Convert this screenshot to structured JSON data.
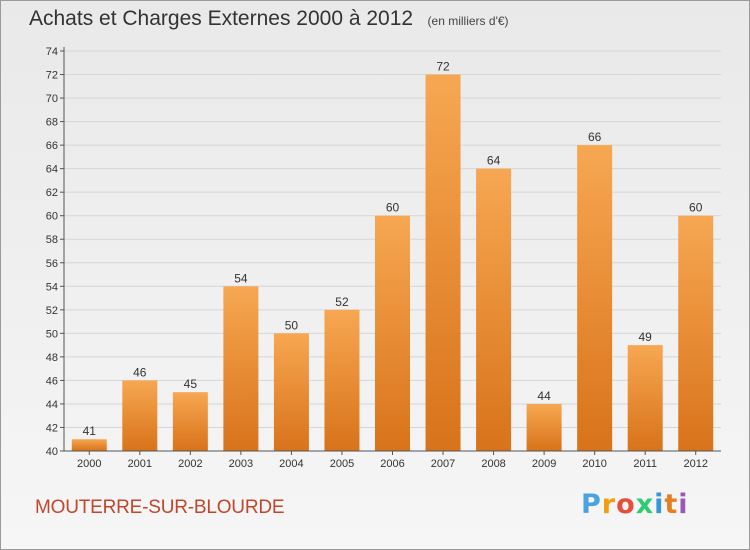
{
  "title": "Achats et Charges Externes 2000 à 2012",
  "unit": "(en milliers d'€)",
  "commune": "MOUTERRE-SUR-BLOURDE",
  "brand": {
    "letters": [
      "P",
      "r",
      "o",
      "x",
      "i",
      "t",
      "i"
    ],
    "colors": [
      "#4aa3df",
      "#f39c12",
      "#e74c3c",
      "#2ecc71",
      "#3498db",
      "#e67e22",
      "#9b59b6"
    ]
  },
  "colors": {
    "bar_light": "#f7a752",
    "bar_dark": "#d8731a",
    "axis": "#555555",
    "grid": "#d6d6d6",
    "title_accent": "#c0462c"
  },
  "chart_data": {
    "type": "bar",
    "title": "Achats et Charges Externes 2000 à 2012",
    "categories": [
      "2000",
      "2001",
      "2002",
      "2003",
      "2004",
      "2005",
      "2006",
      "2007",
      "2008",
      "2009",
      "2010",
      "2011",
      "2012"
    ],
    "values": [
      41,
      46,
      45,
      54,
      50,
      52,
      60,
      72,
      64,
      44,
      66,
      49,
      60
    ],
    "ylim": [
      40,
      74
    ],
    "yticks": [
      40,
      42,
      44,
      46,
      48,
      50,
      52,
      54,
      56,
      58,
      60,
      62,
      64,
      66,
      68,
      70,
      72,
      74
    ],
    "grid": true,
    "data_labels": true
  }
}
